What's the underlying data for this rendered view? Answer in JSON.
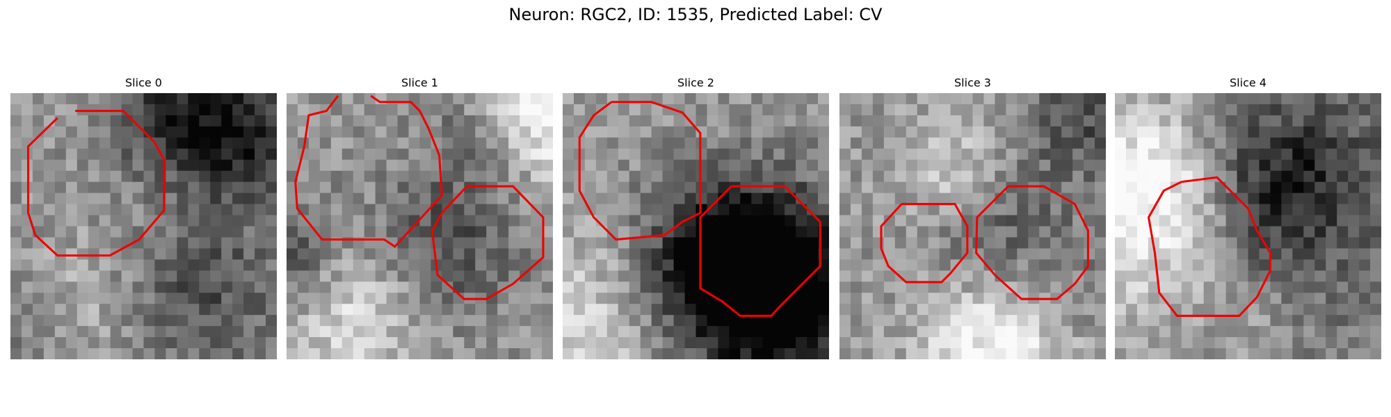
{
  "header": {
    "title": "Neuron: RGC2, ID: 1535, Predicted Label: CV"
  },
  "panels": [
    {
      "title": "Slice 0"
    },
    {
      "title": "Slice 1"
    },
    {
      "title": "Slice 2"
    },
    {
      "title": "Slice 3"
    },
    {
      "title": "Slice 4"
    }
  ]
}
